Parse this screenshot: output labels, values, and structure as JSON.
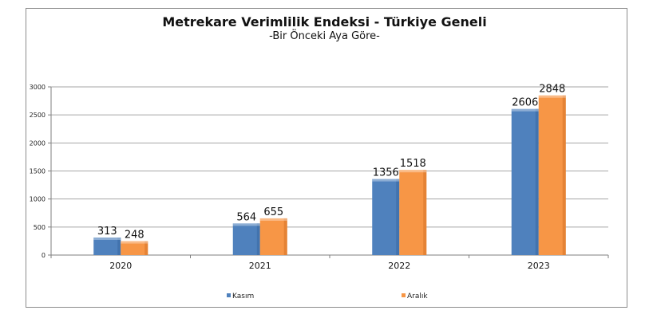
{
  "chart_data": {
    "type": "bar",
    "title": "Metrekare Verimlilik Endeksi - Türkiye Geneli",
    "subtitle": "-Bir Önceki Aya Göre-",
    "categories": [
      "2020",
      "2021",
      "2022",
      "2023"
    ],
    "series": [
      {
        "name": "Kasım",
        "values": [
          313,
          564,
          1356,
          2606
        ],
        "color": "#4f81bd"
      },
      {
        "name": "Aralık",
        "values": [
          248,
          655,
          1518,
          2848
        ],
        "color": "#f79646"
      }
    ],
    "ylim": [
      0,
      3000
    ],
    "yticks": [
      0,
      500,
      1000,
      1500,
      2000,
      2500,
      3000
    ],
    "grid": true,
    "legend": "bottom"
  }
}
